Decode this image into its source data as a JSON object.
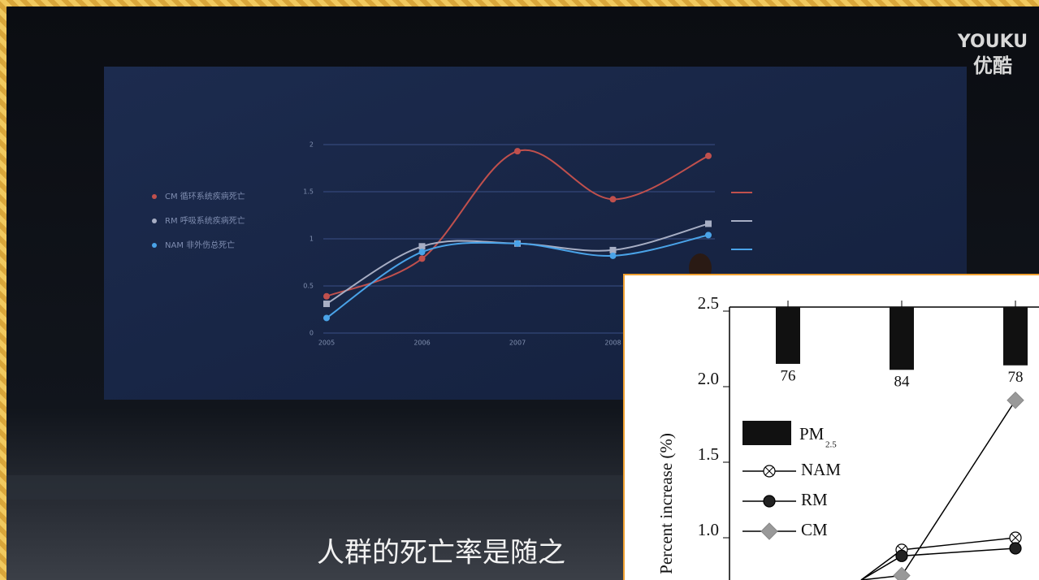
{
  "watermark": {
    "brand": "YOUKU",
    "brand_cn": "优酷"
  },
  "subtitle": "人群的死亡率是随之",
  "slide_chart": {
    "type": "scatter-line",
    "categories": [
      "2005",
      "2006",
      "2007",
      "2008",
      null
    ],
    "ylim": [
      0,
      2
    ],
    "yticks": [
      0,
      0.5,
      1,
      1.5,
      2
    ],
    "grid": true,
    "series": [
      {
        "name": "CM 循环系统疾病死亡",
        "color": "#c0504d",
        "values": [
          0.39,
          0.79,
          1.93,
          1.42,
          1.88
        ]
      },
      {
        "name": "RM 呼吸系统疾病死亡",
        "color": "#a7aec4",
        "values": [
          0.31,
          0.92,
          0.95,
          0.88,
          1.16
        ]
      },
      {
        "name": "NAM 非外伤总死亡",
        "color": "#4aa3e8",
        "values": [
          0.16,
          0.86,
          0.95,
          0.82,
          1.04
        ]
      }
    ]
  },
  "inset_chart": {
    "type": "bar-line",
    "y_label": "Percent increase (%)",
    "ylim": [
      0.72,
      2.5
    ],
    "yticks": [
      {
        "value": 2.5,
        "label": "2.5"
      },
      {
        "value": 2,
        "label": "2.0"
      },
      {
        "value": 1.5,
        "label": "1.5"
      },
      {
        "value": 1,
        "label": "1.0"
      }
    ],
    "bars": {
      "name": "PM",
      "name_sub": "2.5",
      "color": "#111111",
      "values": [
        76,
        84,
        78
      ]
    },
    "series": [
      {
        "name": "NAM",
        "marker": "crossed-circle",
        "values": [
          null,
          0.92,
          1.0
        ]
      },
      {
        "name": "RM",
        "marker": "ball",
        "values": [
          null,
          0.88,
          0.93
        ]
      },
      {
        "name": "CM",
        "marker": "diamond",
        "values": [
          null,
          0.75,
          1.91
        ]
      }
    ]
  }
}
